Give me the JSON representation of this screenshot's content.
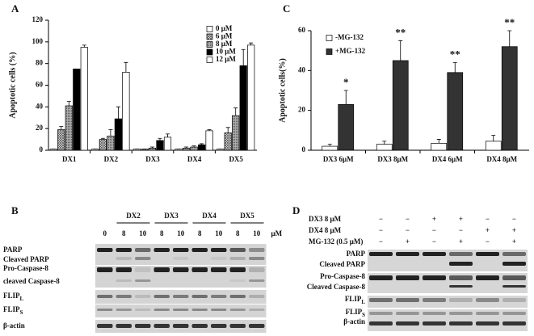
{
  "chart_data": [
    {
      "type": "bar",
      "label": "A",
      "ylabel": "Apoptotic cells (%)",
      "categories": [
        "DX1",
        "DX2",
        "DX3",
        "DX4",
        "DX5"
      ],
      "series": [
        {
          "name": "0 μM",
          "color": "#ffffff",
          "pattern": "none",
          "values": [
            1,
            1,
            1,
            1,
            1
          ],
          "errors": [
            0,
            0,
            0,
            0,
            0
          ]
        },
        {
          "name": "6 μM",
          "color": "#555555",
          "pattern": "crosshatch",
          "values": [
            19,
            10,
            1,
            2,
            16
          ],
          "errors": [
            3,
            1,
            0,
            1,
            5
          ]
        },
        {
          "name": "8 μM",
          "color": "#777777",
          "pattern": "dots",
          "values": [
            41,
            13,
            2,
            3,
            32
          ],
          "errors": [
            4,
            6,
            1,
            1,
            7
          ]
        },
        {
          "name": "10 μM",
          "color": "#000000",
          "pattern": "none",
          "values": [
            75,
            29,
            9,
            5,
            78
          ],
          "errors": [
            0,
            11,
            2,
            1,
            15
          ]
        },
        {
          "name": "12 μM",
          "color": "#ffffff",
          "pattern": "none",
          "values": [
            95,
            72,
            12,
            18,
            97
          ],
          "errors": [
            2,
            9,
            3,
            1,
            2
          ]
        }
      ],
      "ylim": [
        0,
        120
      ],
      "yticks": [
        0,
        20,
        40,
        60,
        80,
        100,
        120
      ],
      "legend": "upper-right"
    },
    {
      "type": "bar",
      "label": "C",
      "ylabel": "Apoptotic cells(%)",
      "categories": [
        "DX3 6μM",
        "DX3 8μM",
        "DX4 6μM",
        "DX4 8μM"
      ],
      "series": [
        {
          "name": "-MG-132",
          "color": "#ffffff",
          "pattern": "none",
          "values": [
            2,
            3,
            3.5,
            4.5
          ],
          "errors": [
            1,
            1.5,
            2,
            3
          ]
        },
        {
          "name": "+MG-132",
          "color": "#333333",
          "pattern": "none",
          "values": [
            23,
            45,
            39,
            52
          ],
          "errors": [
            7,
            10,
            5,
            8
          ]
        }
      ],
      "annotations": [
        "*",
        "**",
        "**",
        "**"
      ],
      "ylim": [
        0,
        60
      ],
      "yticks": [
        0,
        20,
        40,
        60
      ],
      "legend": "upper-left"
    }
  ],
  "blot_b": {
    "label": "B",
    "groups": [
      "DX2",
      "DX3",
      "DX4",
      "DX5"
    ],
    "lanes": [
      "0",
      "8",
      "10",
      "8",
      "10",
      "8",
      "10",
      "8",
      "10"
    ],
    "unit": "μM",
    "rows": [
      {
        "text": "PARP"
      },
      {
        "text": "Cleaved PARP"
      },
      {
        "text": "Pro-Caspase-8"
      },
      {
        "text": "cleaved Caspase-8"
      },
      {
        "text": "FLIP",
        "sub": "L"
      },
      {
        "text": "FLIP",
        "sub": "S"
      },
      {
        "text": "β-actin"
      }
    ]
  },
  "blot_d": {
    "label": "D",
    "conditions": [
      {
        "name": "DX3 8 μM",
        "signs": [
          "−",
          "−",
          "+",
          "+",
          "−",
          "−"
        ]
      },
      {
        "name": "DX4 8 μM",
        "signs": [
          "−",
          "−",
          "−",
          "−",
          "+",
          "+"
        ]
      },
      {
        "name": "MG-132 (0.5 μM)",
        "signs": [
          "−",
          "+",
          "−",
          "+",
          "−",
          "+"
        ]
      }
    ],
    "rows": [
      {
        "text": "PARP"
      },
      {
        "text": "Cleaved PARP"
      },
      {
        "text": "Pro-Caspase-8"
      },
      {
        "text": "Cleaved Caspase-8"
      },
      {
        "text": "FLIP",
        "sub": "L"
      },
      {
        "text": "FLIP",
        "sub": "S"
      },
      {
        "text": "β-actin"
      }
    ]
  }
}
